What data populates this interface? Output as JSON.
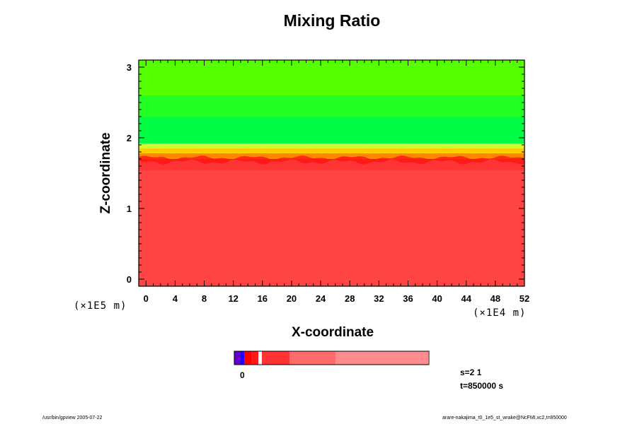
{
  "chart_data": {
    "type": "heatmap",
    "title": "Mixing Ratio",
    "xlabel": "X-coordinate",
    "ylabel": "Z-coordinate",
    "x_unit": "(×1E4 m)",
    "y_unit": "(×1E5 m)",
    "xlim": [
      -1,
      52
    ],
    "ylim": [
      -0.1,
      3.1
    ],
    "x_ticks": [
      0,
      4,
      8,
      12,
      16,
      20,
      24,
      28,
      32,
      36,
      40,
      44,
      48,
      52
    ],
    "y_ticks": [
      0,
      1,
      2,
      3
    ],
    "bands": [
      {
        "z0": -0.1,
        "z1": 1.55,
        "color": "#ff4444"
      },
      {
        "z0": 1.55,
        "z1": 1.7,
        "color": "#ff1a1a"
      },
      {
        "z0": 1.7,
        "z1": 1.78,
        "color": "#ff8800"
      },
      {
        "z0": 1.78,
        "z1": 1.85,
        "color": "#ffcc00"
      },
      {
        "z0": 1.85,
        "z1": 1.92,
        "color": "#ccff33"
      },
      {
        "z0": 1.92,
        "z1": 2.3,
        "color": "#00ff44"
      },
      {
        "z0": 2.3,
        "z1": 2.6,
        "color": "#22ff22"
      },
      {
        "z0": 2.6,
        "z1": 3.1,
        "color": "#55ff00"
      }
    ],
    "colorbar": {
      "zero_label": "0",
      "colors": [
        "#6600cc",
        "#2200ff",
        "#ff0000",
        "#ff1a1a",
        "#ff3333",
        "#ff4d4d",
        "#ff6b6b",
        "#ff8c8c"
      ]
    },
    "grid": false
  },
  "annotations": {
    "s_label": "s=2 1",
    "t_label": "t=850000 s"
  },
  "footer": {
    "left": "/usr/bin/gpview 2005-07-22",
    "right": "arare-nakajima_t0_1e5_st_wrake@NcFMI,xc2,t=850000"
  }
}
